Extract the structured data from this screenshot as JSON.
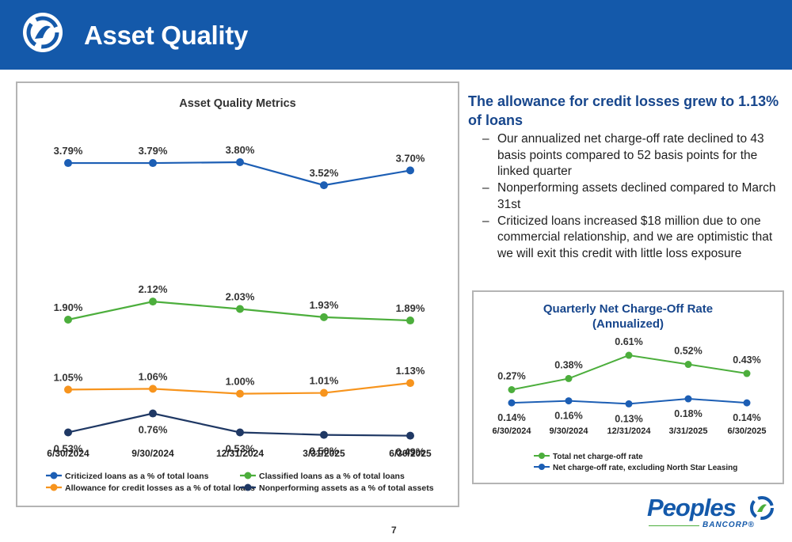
{
  "header": {
    "title": "Asset Quality"
  },
  "colors": {
    "header_bg": "#1459aa",
    "blue": "#1c5eb4",
    "green": "#4cae3c",
    "orange": "#f7941d",
    "navy": "#1f3864",
    "lead_text": "#17468c"
  },
  "text": {
    "lead": "The allowance for credit losses grew to 1.13% of loans",
    "bullets": [
      "Our annualized net charge-off rate declined to 43 basis points compared to 52 basis points for the linked quarter",
      "Nonperforming assets declined compared to March 31st",
      "Criticized loans increased $18 million due to one commercial relationship, and we are optimistic that we will exit this credit with little loss exposure"
    ]
  },
  "chart_data": [
    {
      "type": "line",
      "title": "Asset Quality Metrics",
      "categories": [
        "6/30/2024",
        "9/30/2024",
        "12/31/2024",
        "3/31/2025",
        "6/30/2025"
      ],
      "series": [
        {
          "name": "Criticized loans as a % of total loans",
          "color": "#1c5eb4",
          "values": [
            3.79,
            3.79,
            3.8,
            3.52,
            3.7
          ],
          "labels": [
            "3.79%",
            "3.79%",
            "3.80%",
            "3.52%",
            "3.70%"
          ],
          "label_pos": "above"
        },
        {
          "name": "Classified loans as a % of total loans",
          "color": "#4cae3c",
          "values": [
            1.9,
            2.12,
            2.03,
            1.93,
            1.89
          ],
          "labels": [
            "1.90%",
            "2.12%",
            "2.03%",
            "1.93%",
            "1.89%"
          ],
          "label_pos": "above"
        },
        {
          "name": "Allowance for credit losses as a % of total loans",
          "color": "#f7941d",
          "values": [
            1.05,
            1.06,
            1.0,
            1.01,
            1.13
          ],
          "labels": [
            "1.05%",
            "1.06%",
            "1.00%",
            "1.01%",
            "1.13%"
          ],
          "label_pos": "above"
        },
        {
          "name": "Nonperforming assets as a % of total assets",
          "color": "#1f3864",
          "values": [
            0.53,
            0.76,
            0.53,
            0.5,
            0.49
          ],
          "labels": [
            "0.53%",
            "0.76%",
            "0.53%",
            "0.50%",
            "0.49%"
          ],
          "label_pos": "below"
        }
      ],
      "legend": "bottom",
      "grid": false
    },
    {
      "type": "line",
      "title": "Quarterly Net Charge-Off Rate",
      "subtitle": "(Annualized)",
      "categories": [
        "6/30/2024",
        "9/30/2024",
        "12/31/2024",
        "3/31/2025",
        "6/30/2025"
      ],
      "series": [
        {
          "name": "Total net charge-off rate",
          "color": "#4cae3c",
          "values": [
            0.27,
            0.38,
            0.61,
            0.52,
            0.43
          ],
          "labels": [
            "0.27%",
            "0.38%",
            "0.61%",
            "0.52%",
            "0.43%"
          ],
          "label_pos": "above"
        },
        {
          "name": "Net charge-off rate, excluding North Star Leasing",
          "color": "#1c5eb4",
          "values": [
            0.14,
            0.16,
            0.13,
            0.18,
            0.14
          ],
          "labels": [
            "0.14%",
            "0.16%",
            "0.13%",
            "0.18%",
            "0.14%"
          ],
          "label_pos": "below"
        }
      ],
      "legend": "bottom-left",
      "grid": false
    }
  ],
  "brand": {
    "name": "Peoples",
    "sub": "BANCORP®"
  },
  "footer": {
    "page": "7"
  }
}
